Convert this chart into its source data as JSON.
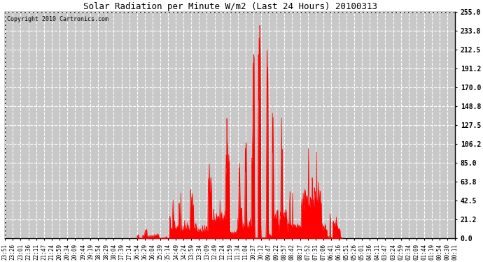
{
  "title": "Solar Radiation per Minute W/m2 (Last 24 Hours) 20100313",
  "copyright": "Copyright 2010 Cartronics.com",
  "y_ticks": [
    0.0,
    21.2,
    42.5,
    63.8,
    85.0,
    106.2,
    127.5,
    148.8,
    170.0,
    191.2,
    212.5,
    233.8,
    255.0
  ],
  "y_min": 0.0,
  "y_max": 255.0,
  "bar_color": "#ff0000",
  "grid_color": "#ffffff",
  "bg_color": "#ffffff",
  "plot_bg_color": "#c8c8c8",
  "border_color": "#000000",
  "dashed_line_color": "#ff0000",
  "x_labels": [
    "23:51",
    "23:26",
    "23:01",
    "22:36",
    "22:11",
    "21:47",
    "21:24",
    "20:59",
    "20:34",
    "20:09",
    "19:44",
    "19:19",
    "18:54",
    "18:29",
    "18:04",
    "17:39",
    "17:14",
    "16:54",
    "16:29",
    "16:04",
    "15:39",
    "15:14",
    "14:49",
    "14:24",
    "13:59",
    "13:34",
    "13:09",
    "12:49",
    "12:24",
    "11:59",
    "11:34",
    "11:04",
    "10:37",
    "10:12",
    "09:47",
    "09:22",
    "08:57",
    "08:42",
    "08:17",
    "07:52",
    "07:31",
    "07:06",
    "06:41",
    "06:16",
    "05:51",
    "05:26",
    "05:01",
    "04:36",
    "04:11",
    "03:47",
    "03:24",
    "02:59",
    "02:34",
    "02:09",
    "01:44",
    "01:19",
    "00:54",
    "00:30",
    "00:11"
  ],
  "num_points": 1440,
  "sunrise_min": 420,
  "sunset_min": 1080,
  "peak_min": 830
}
